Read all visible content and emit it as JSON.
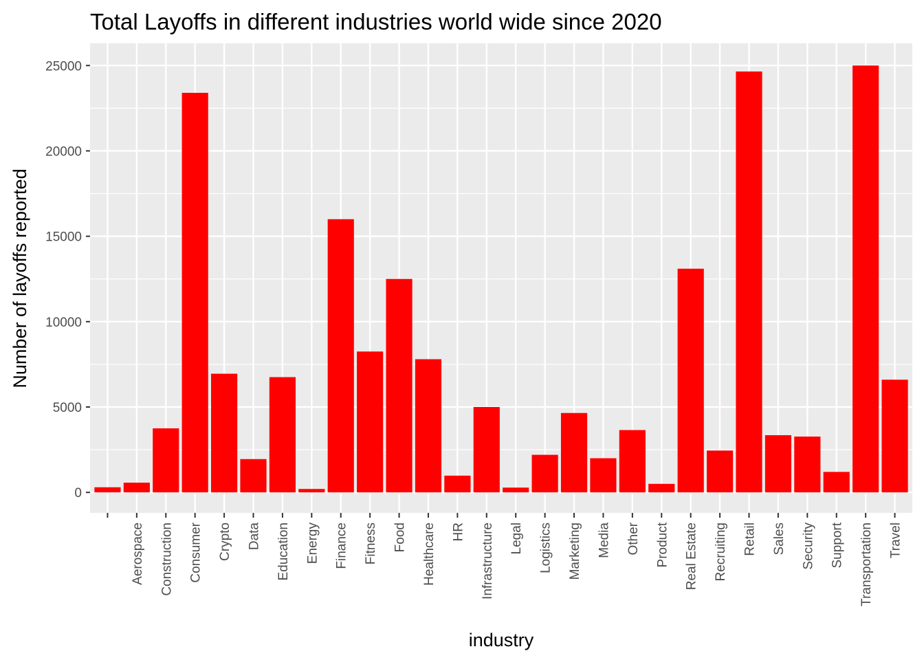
{
  "chart_data": {
    "type": "bar",
    "title": "Total Layoffs in different industries world wide since 2020",
    "xlabel": "industry",
    "ylabel": "Number of layoffs reported",
    "categories": [
      "",
      "Aerospace",
      "Construction",
      "Consumer",
      "Crypto",
      "Data",
      "Education",
      "Energy",
      "Finance",
      "Fitness",
      "Food",
      "Healthcare",
      "HR",
      "Infrastructure",
      "Legal",
      "Logistics",
      "Marketing",
      "Media",
      "Other",
      "Product",
      "Real Estate",
      "Recruiting",
      "Retail",
      "Sales",
      "Security",
      "Support",
      "Transportation",
      "Travel"
    ],
    "values": [
      300,
      570,
      3750,
      23400,
      6950,
      1950,
      6750,
      200,
      16000,
      8250,
      12500,
      7800,
      980,
      5000,
      280,
      2200,
      4650,
      2000,
      3650,
      500,
      13100,
      2450,
      24650,
      3350,
      3270,
      1200,
      25000,
      6600
    ],
    "y_ticks": [
      "0",
      "5000",
      "10000",
      "15000",
      "20000",
      "25000"
    ],
    "ylim": [
      -1200,
      26300
    ],
    "grid": true,
    "colors": {
      "bar": "#ff0000",
      "panel": "#ebebeb",
      "grid": "#ffffff",
      "tick_text": "#4d4d4d"
    }
  }
}
